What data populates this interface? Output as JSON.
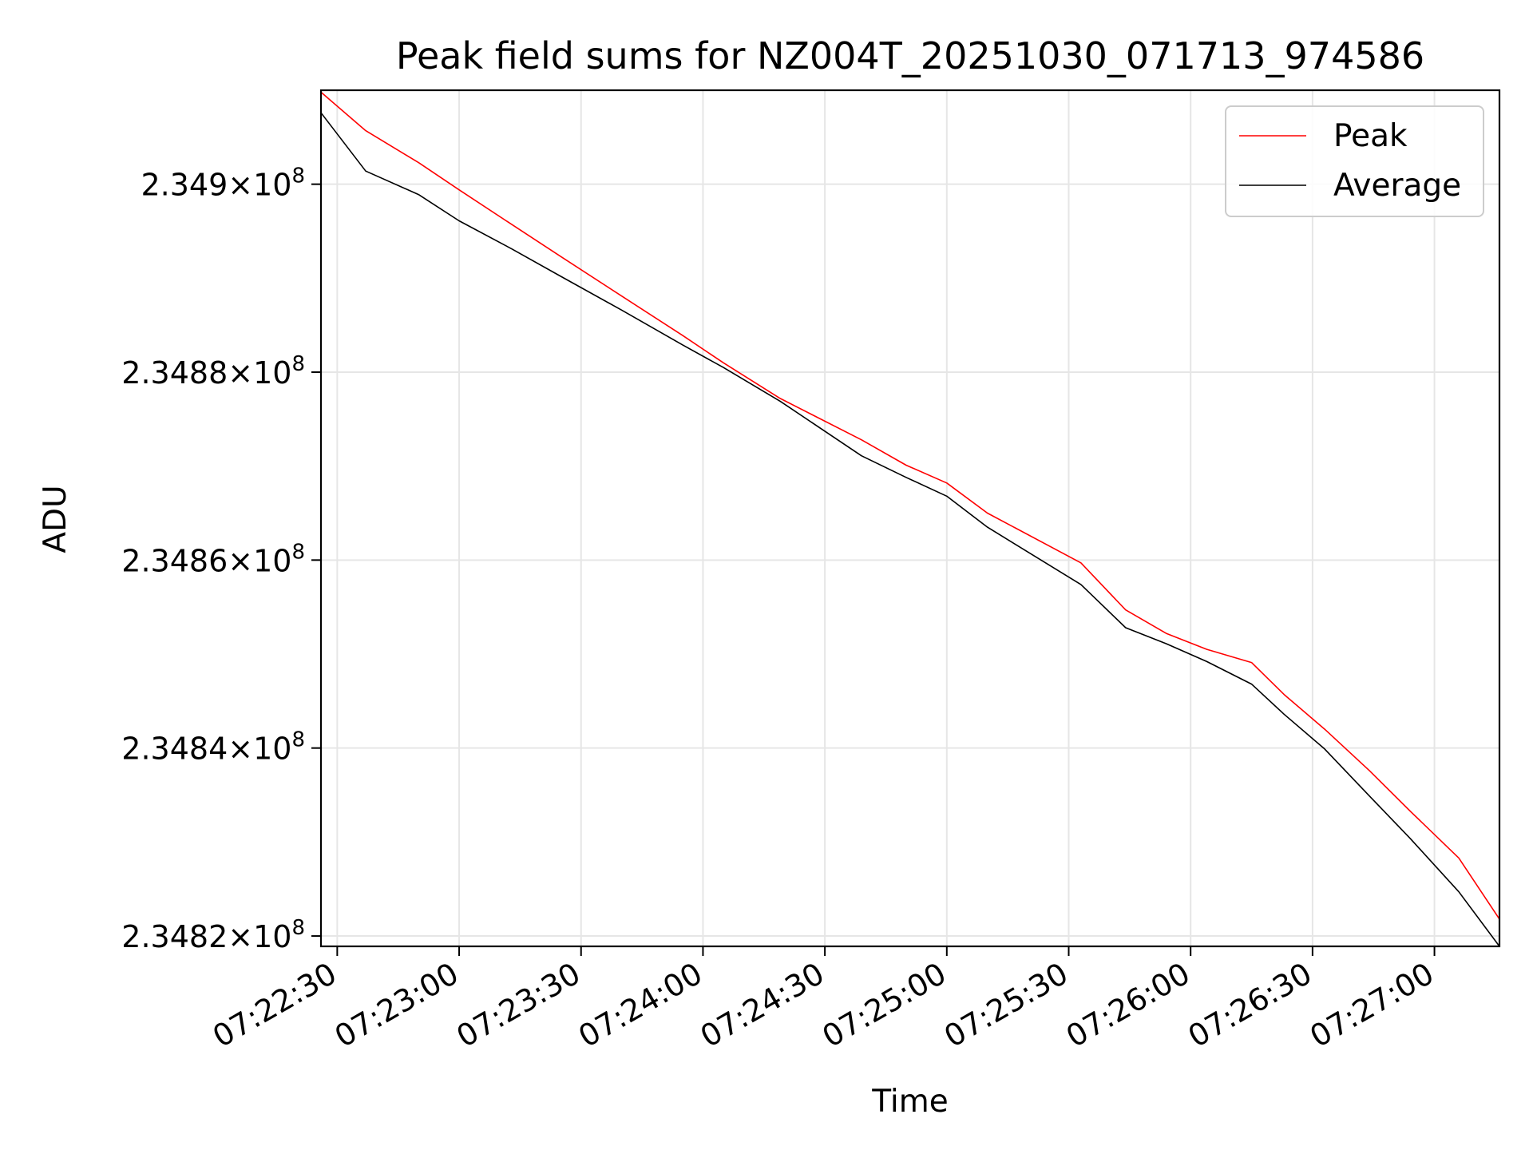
{
  "chart_data": {
    "type": "line",
    "title": "Peak field sums for NZ004T_20251030_071713_974586",
    "xlabel": "Time",
    "ylabel": "ADU",
    "x_ticks": [
      "07:22:30",
      "07:23:00",
      "07:23:30",
      "07:24:00",
      "07:24:30",
      "07:25:00",
      "07:25:30",
      "07:26:00",
      "07:26:30",
      "07:27:00"
    ],
    "y_ticks": [
      {
        "value": 234820000,
        "mantissa": "2.3482",
        "exponent": "8"
      },
      {
        "value": 234840000,
        "mantissa": "2.3484",
        "exponent": "8"
      },
      {
        "value": 234860000,
        "mantissa": "2.3486",
        "exponent": "8"
      },
      {
        "value": 234880000,
        "mantissa": "2.3488",
        "exponent": "8"
      },
      {
        "value": 234900000,
        "mantissa": "2.349",
        "exponent": "8"
      }
    ],
    "y_scale": "log",
    "ylim": [
      234818900,
      234910000
    ],
    "xlim": [
      "07:22:26",
      "07:27:16"
    ],
    "grid": true,
    "legend_position": "upper right",
    "x": [
      "07:22:26",
      "07:22:37",
      "07:22:50",
      "07:23:00",
      "07:23:13",
      "07:23:25",
      "07:23:40",
      "07:23:55",
      "07:24:05",
      "07:24:19",
      "07:24:39",
      "07:24:50",
      "07:25:00",
      "07:25:10",
      "07:25:33",
      "07:25:44",
      "07:25:54",
      "07:26:04",
      "07:26:15",
      "07:26:23",
      "07:26:33",
      "07:26:44",
      "07:26:54",
      "07:27:06",
      "07:27:16"
    ],
    "series": [
      {
        "name": "Peak",
        "color": "#ff0000",
        "values": [
          234909800,
          234905700,
          234902300,
          234899400,
          234895700,
          234892300,
          234888100,
          234883900,
          234881000,
          234877200,
          234872800,
          234870100,
          234868200,
          234865000,
          234859700,
          234854700,
          234852200,
          234850500,
          234849100,
          234845700,
          234842000,
          234837600,
          234833300,
          234828300,
          234821800
        ]
      },
      {
        "name": "Average",
        "color": "#000000",
        "values": [
          234907600,
          234901400,
          234898900,
          234896100,
          234893100,
          234890200,
          234886600,
          234882900,
          234880500,
          234876900,
          234871100,
          234868800,
          234866800,
          234863500,
          234857400,
          234852800,
          234851100,
          234849200,
          234846800,
          234843600,
          234839900,
          234834900,
          234830400,
          234824700,
          234818900
        ]
      }
    ]
  }
}
